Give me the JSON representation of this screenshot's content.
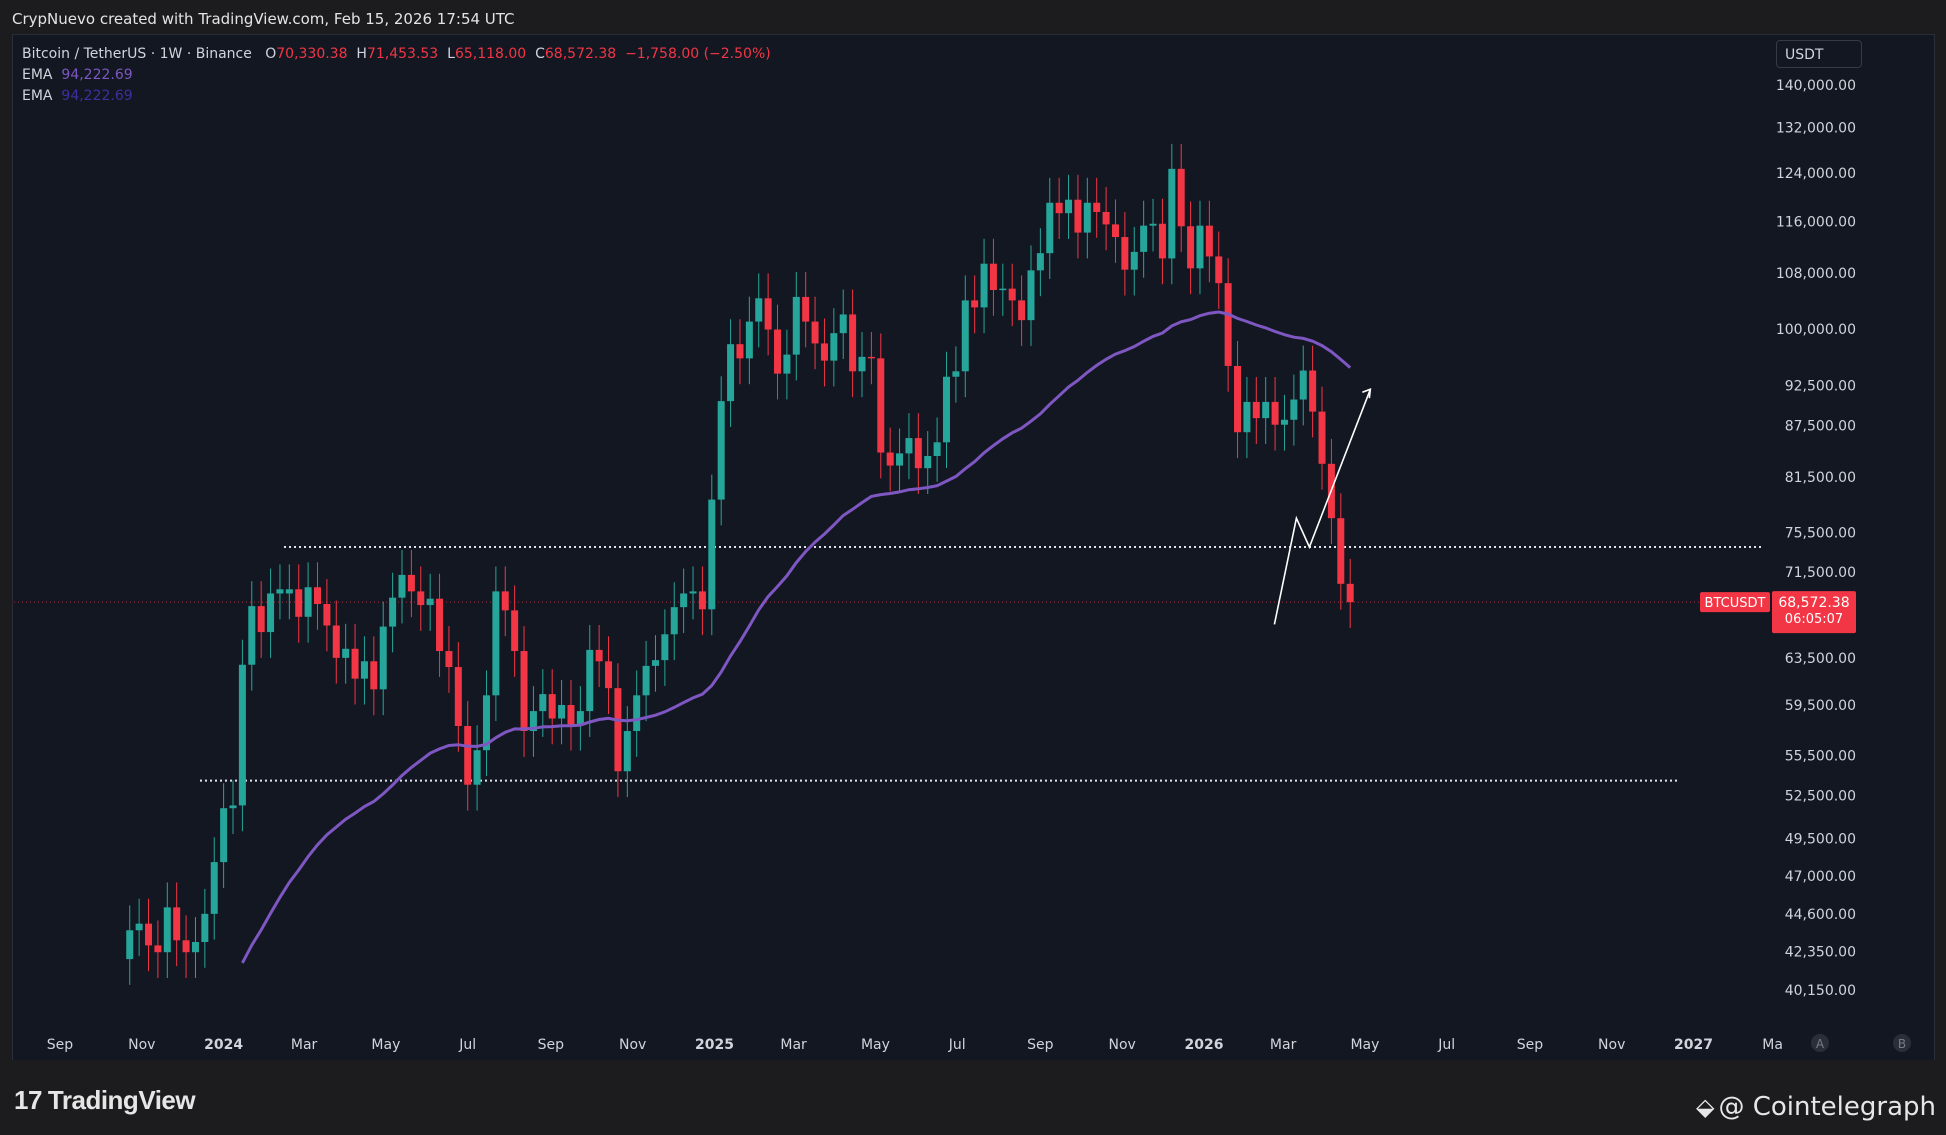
{
  "header": {
    "caption": "CrypNuevo created with TradingView.com, Feb 15, 2026 17:54 UTC"
  },
  "legend": {
    "symbol": "Bitcoin / TetherUS · 1W · Binance",
    "open_label": "O",
    "open": "70,330.38",
    "high_label": "H",
    "high": "71,453.53",
    "low_label": "L",
    "low": "65,118.00",
    "close_label": "C",
    "close": "68,572.38",
    "change": "−1,758.00 (−2.50%)",
    "ema1_label": "EMA",
    "ema1_value": "94,222.69",
    "ema2_label": "EMA",
    "ema2_value": "94,222.69"
  },
  "unit_button": "USDT",
  "footer": {
    "tv_brand": "TradingView",
    "ct_brand": "@ Cointelegraph"
  },
  "colors": {
    "up": "#26a69a",
    "down": "#f23645",
    "ema": "#7e57c2",
    "grid_bg": "#131722",
    "text": "#d1d4dc"
  },
  "chart_data": {
    "type": "candlestick",
    "title": "Bitcoin / TetherUS · 1W · Binance",
    "y_scale": "log",
    "ylim": [
      38000,
      146000
    ],
    "y_ticks": [
      "140,000.00",
      "132,000.00",
      "124,000.00",
      "116,000.00",
      "108,000.00",
      "100,000.00",
      "92,500.00",
      "87,500.00",
      "81,500.00",
      "75,500.00",
      "71,500.00",
      "63,500.00",
      "59,500.00",
      "55,500.00",
      "52,500.00",
      "49,500.00",
      "47,000.00",
      "44,600.00",
      "42,350.00",
      "40,150.00"
    ],
    "x_ticks": [
      {
        "label": "Sep",
        "bold": false,
        "date": "2023-09-01"
      },
      {
        "label": "Nov",
        "bold": false,
        "date": "2023-11-01"
      },
      {
        "label": "2024",
        "bold": true,
        "date": "2024-01-01"
      },
      {
        "label": "Mar",
        "bold": false,
        "date": "2024-03-01"
      },
      {
        "label": "May",
        "bold": false,
        "date": "2024-05-01"
      },
      {
        "label": "Jul",
        "bold": false,
        "date": "2024-07-01"
      },
      {
        "label": "Sep",
        "bold": false,
        "date": "2024-09-01"
      },
      {
        "label": "Nov",
        "bold": false,
        "date": "2024-11-01"
      },
      {
        "label": "2025",
        "bold": true,
        "date": "2025-01-01"
      },
      {
        "label": "Mar",
        "bold": false,
        "date": "2025-03-01"
      },
      {
        "label": "May",
        "bold": false,
        "date": "2025-05-01"
      },
      {
        "label": "Jul",
        "bold": false,
        "date": "2025-07-01"
      },
      {
        "label": "Sep",
        "bold": false,
        "date": "2025-09-01"
      },
      {
        "label": "Nov",
        "bold": false,
        "date": "2025-11-01"
      },
      {
        "label": "2026",
        "bold": true,
        "date": "2026-01-01"
      },
      {
        "label": "Mar",
        "bold": false,
        "date": "2026-03-01"
      },
      {
        "label": "May",
        "bold": false,
        "date": "2026-05-01"
      },
      {
        "label": "Jul",
        "bold": false,
        "date": "2026-07-01"
      },
      {
        "label": "Sep",
        "bold": false,
        "date": "2026-09-01"
      },
      {
        "label": "Nov",
        "bold": false,
        "date": "2026-11-01"
      },
      {
        "label": "2027",
        "bold": true,
        "date": "2027-01-01"
      },
      {
        "label": "Ma",
        "bold": false,
        "date": "2027-03-01"
      }
    ],
    "corner_buttons": [
      "A",
      "B"
    ],
    "weekly_closes": [
      [
        41900,
        43600
      ],
      [
        43600,
        44000
      ],
      [
        44000,
        42700
      ],
      [
        42700,
        42300
      ],
      [
        42300,
        45000
      ],
      [
        45000,
        43000
      ],
      [
        43000,
        42300
      ],
      [
        42300,
        42900
      ],
      [
        42900,
        44600
      ],
      [
        44600,
        47900
      ],
      [
        47900,
        51600
      ],
      [
        51600,
        51800
      ],
      [
        51800,
        62900
      ],
      [
        62900,
        68200
      ],
      [
        68200,
        65800
      ],
      [
        65800,
        69400
      ],
      [
        69400,
        69800
      ],
      [
        69400,
        69800
      ],
      [
        69800,
        67200
      ],
      [
        67200,
        70000
      ],
      [
        70000,
        68400
      ],
      [
        68400,
        66400
      ],
      [
        66400,
        63500
      ],
      [
        63500,
        64300
      ],
      [
        64300,
        61700
      ],
      [
        61700,
        63200
      ],
      [
        63200,
        60800
      ],
      [
        60800,
        66300
      ],
      [
        66300,
        69000
      ],
      [
        69000,
        71200
      ],
      [
        71200,
        69600
      ],
      [
        69600,
        68300
      ],
      [
        68300,
        68900
      ],
      [
        68900,
        64100
      ],
      [
        64100,
        62700
      ],
      [
        62700,
        57800
      ],
      [
        57800,
        53300
      ],
      [
        53300,
        55900
      ],
      [
        55900,
        60300
      ],
      [
        60300,
        69600
      ],
      [
        69600,
        67800
      ],
      [
        67800,
        64100
      ],
      [
        64100,
        57400
      ],
      [
        57400,
        59000
      ],
      [
        59000,
        60400
      ],
      [
        60400,
        58400
      ],
      [
        58400,
        59500
      ],
      [
        59500,
        57900
      ],
      [
        57900,
        59000
      ],
      [
        59000,
        64200
      ],
      [
        64200,
        63200
      ],
      [
        63200,
        60900
      ],
      [
        60900,
        54300
      ],
      [
        54300,
        57400
      ],
      [
        57400,
        60300
      ],
      [
        60300,
        62800
      ],
      [
        62800,
        63300
      ],
      [
        63300,
        65600
      ],
      [
        65600,
        68100
      ],
      [
        68100,
        69400
      ],
      [
        69400,
        69600
      ],
      [
        69600,
        67900
      ],
      [
        67900,
        79000
      ],
      [
        79000,
        90500
      ],
      [
        90500,
        97900
      ],
      [
        97900,
        96000
      ],
      [
        96000,
        101000
      ],
      [
        101000,
        104300
      ],
      [
        104300,
        99900
      ],
      [
        99900,
        94000
      ],
      [
        94000,
        96500
      ],
      [
        96500,
        104500
      ],
      [
        104500,
        101000
      ],
      [
        101000,
        98000
      ],
      [
        98000,
        95700
      ],
      [
        95700,
        99400
      ],
      [
        99400,
        102000
      ],
      [
        102000,
        94300
      ],
      [
        94300,
        96200
      ],
      [
        96200,
        96000
      ],
      [
        96000,
        84300
      ],
      [
        84300,
        82800
      ],
      [
        82800,
        84200
      ],
      [
        84200,
        86000
      ],
      [
        86000,
        82500
      ],
      [
        82500,
        83900
      ],
      [
        83900,
        85500
      ],
      [
        85500,
        93600
      ],
      [
        93600,
        94300
      ],
      [
        94300,
        104000
      ],
      [
        104000,
        103000
      ],
      [
        103000,
        109400
      ],
      [
        109400,
        105500
      ],
      [
        105500,
        105700
      ],
      [
        105700,
        104000
      ],
      [
        104000,
        101200
      ],
      [
        101200,
        108400
      ],
      [
        108400,
        111000
      ],
      [
        111000,
        119000
      ],
      [
        119000,
        117300
      ],
      [
        117300,
        119500
      ],
      [
        119500,
        114200
      ],
      [
        114200,
        119000
      ],
      [
        119000,
        117500
      ],
      [
        117500,
        115500
      ],
      [
        115500,
        113500
      ],
      [
        113500,
        108500
      ],
      [
        108500,
        111200
      ],
      [
        111200,
        115300
      ],
      [
        115300,
        115600
      ],
      [
        115600,
        110200
      ],
      [
        110200,
        124700
      ],
      [
        124700,
        115200
      ],
      [
        115200,
        108700
      ],
      [
        108700,
        115300
      ],
      [
        115300,
        110500
      ],
      [
        110500,
        106500
      ],
      [
        106500,
        95000
      ],
      [
        95000,
        86700
      ],
      [
        86700,
        90400
      ],
      [
        90400,
        88400
      ],
      [
        88400,
        90400
      ],
      [
        90400,
        87600
      ],
      [
        87600,
        88200
      ],
      [
        88200,
        90700
      ],
      [
        90700,
        94400
      ],
      [
        94400,
        89200
      ],
      [
        89200,
        83000
      ],
      [
        83000,
        77000
      ],
      [
        77000,
        70330
      ],
      [
        70330,
        68572
      ]
    ],
    "ema_weekly": "EMA 94,222.69 (two overlaid EMA lines, same value)",
    "horizontal_levels": [
      74000,
      53600
    ],
    "last_price_label": "BTCUSDT",
    "last_price": "68,572.38",
    "countdown": "06:05:07",
    "projection": "hand-drawn arrow: down to ~66,500, up to ~77,000, pullback to ~74,000, then up to ~92,000"
  }
}
